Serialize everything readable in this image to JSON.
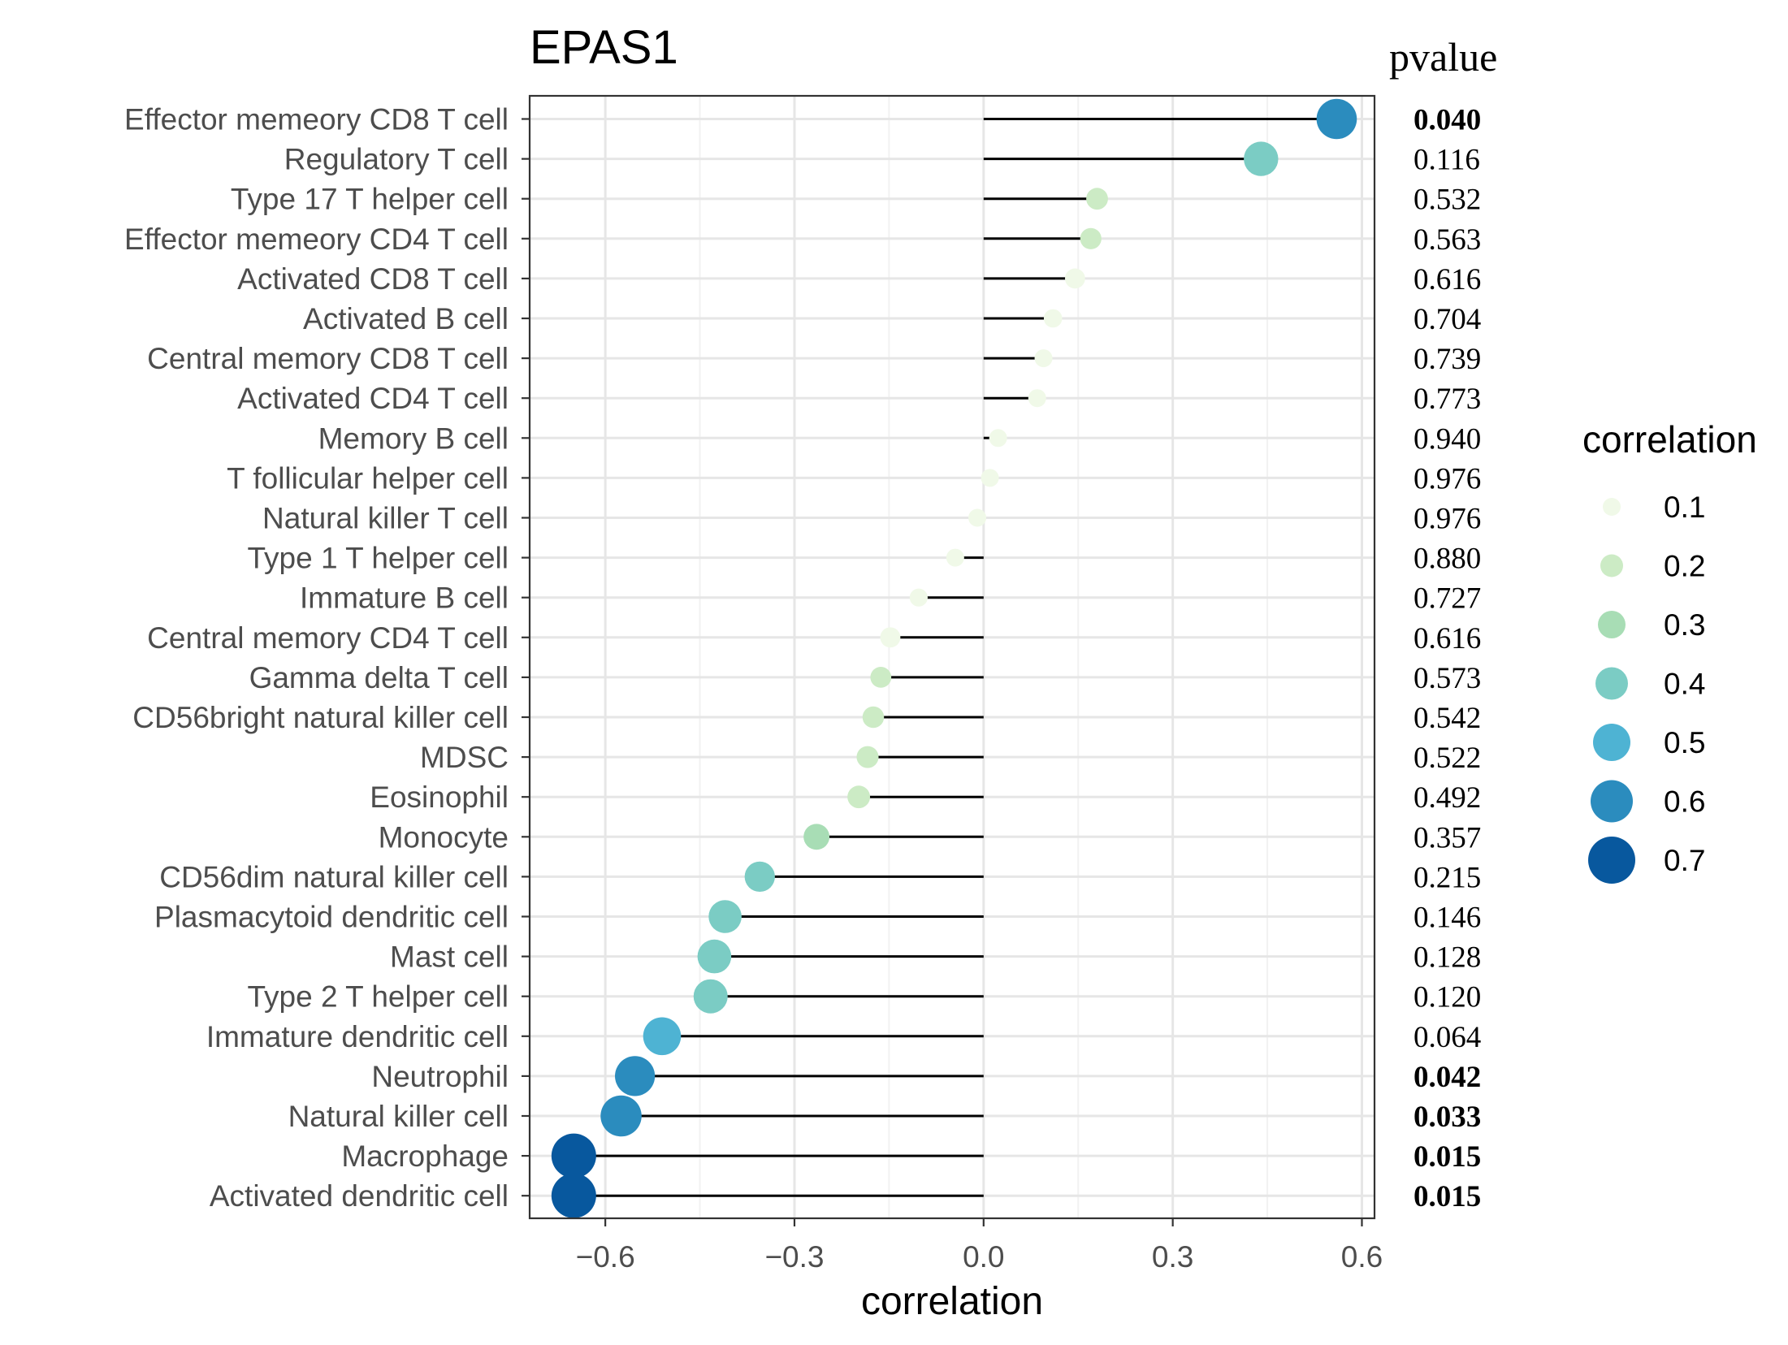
{
  "chart_data": {
    "type": "lollipop",
    "title": "EPAS1",
    "xlabel": "correlation",
    "ylabel": "",
    "xlim": [
      -0.72,
      0.62
    ],
    "x_ticks": [
      -0.6,
      -0.3,
      0.0,
      0.3,
      0.6
    ],
    "x_tick_labels": [
      "−0.6",
      "−0.3",
      "0.0",
      "0.3",
      "0.6"
    ],
    "grid": true,
    "pvalue_header": "pvalue",
    "pvalue_bold_threshold": 0.05,
    "legend": {
      "title": "correlation",
      "placement": "right",
      "entries": [
        {
          "label": "0.1",
          "value": 0.1,
          "color": "#f0f9e8"
        },
        {
          "label": "0.2",
          "value": 0.2,
          "color": "#ccebc5"
        },
        {
          "label": "0.3",
          "value": 0.3,
          "color": "#a8ddb5"
        },
        {
          "label": "0.4",
          "value": 0.4,
          "color": "#7bccc4"
        },
        {
          "label": "0.5",
          "value": 0.5,
          "color": "#4eb3d3"
        },
        {
          "label": "0.6",
          "value": 0.6,
          "color": "#2b8cbe"
        },
        {
          "label": "0.7",
          "value": 0.7,
          "color": "#08589e"
        }
      ]
    },
    "rows": [
      {
        "label": "Effector memeory CD8 T cell",
        "correlation": 0.56,
        "pvalue": "0.040"
      },
      {
        "label": "Regulatory T cell",
        "correlation": 0.44,
        "pvalue": "0.116"
      },
      {
        "label": "Type 17 T helper cell",
        "correlation": 0.18,
        "pvalue": "0.532"
      },
      {
        "label": "Effector memeory CD4 T cell",
        "correlation": 0.17,
        "pvalue": "0.563"
      },
      {
        "label": "Activated CD8 T cell",
        "correlation": 0.145,
        "pvalue": "0.616"
      },
      {
        "label": "Activated B cell",
        "correlation": 0.11,
        "pvalue": "0.704"
      },
      {
        "label": "Central memory CD8 T cell",
        "correlation": 0.095,
        "pvalue": "0.739"
      },
      {
        "label": "Activated CD4 T cell",
        "correlation": 0.085,
        "pvalue": "0.773"
      },
      {
        "label": "Memory B cell",
        "correlation": 0.023,
        "pvalue": "0.940"
      },
      {
        "label": "T follicular helper cell",
        "correlation": 0.01,
        "pvalue": "0.976"
      },
      {
        "label": "Natural killer T cell",
        "correlation": -0.01,
        "pvalue": "0.976"
      },
      {
        "label": "Type 1 T helper cell",
        "correlation": -0.045,
        "pvalue": "0.880"
      },
      {
        "label": "Immature  B cell",
        "correlation": -0.103,
        "pvalue": "0.727"
      },
      {
        "label": "Central memory CD4 T cell",
        "correlation": -0.148,
        "pvalue": "0.616"
      },
      {
        "label": "Gamma delta T cell",
        "correlation": -0.163,
        "pvalue": "0.573"
      },
      {
        "label": "CD56bright natural killer cell",
        "correlation": -0.175,
        "pvalue": "0.542"
      },
      {
        "label": "MDSC",
        "correlation": -0.184,
        "pvalue": "0.522"
      },
      {
        "label": "Eosinophil",
        "correlation": -0.198,
        "pvalue": "0.492"
      },
      {
        "label": "Monocyte",
        "correlation": -0.265,
        "pvalue": "0.357"
      },
      {
        "label": "CD56dim natural killer cell",
        "correlation": -0.355,
        "pvalue": "0.215"
      },
      {
        "label": "Plasmacytoid dendritic cell",
        "correlation": -0.41,
        "pvalue": "0.146"
      },
      {
        "label": "Mast cell",
        "correlation": -0.427,
        "pvalue": "0.128"
      },
      {
        "label": "Type 2 T helper cell",
        "correlation": -0.433,
        "pvalue": "0.120"
      },
      {
        "label": "Immature dendritic cell",
        "correlation": -0.51,
        "pvalue": "0.064"
      },
      {
        "label": "Neutrophil",
        "correlation": -0.553,
        "pvalue": "0.042"
      },
      {
        "label": "Natural killer cell",
        "correlation": -0.575,
        "pvalue": "0.033"
      },
      {
        "label": "Macrophage",
        "correlation": -0.65,
        "pvalue": "0.015"
      },
      {
        "label": "Activated dendritic cell",
        "correlation": -0.65,
        "pvalue": "0.015"
      }
    ]
  }
}
